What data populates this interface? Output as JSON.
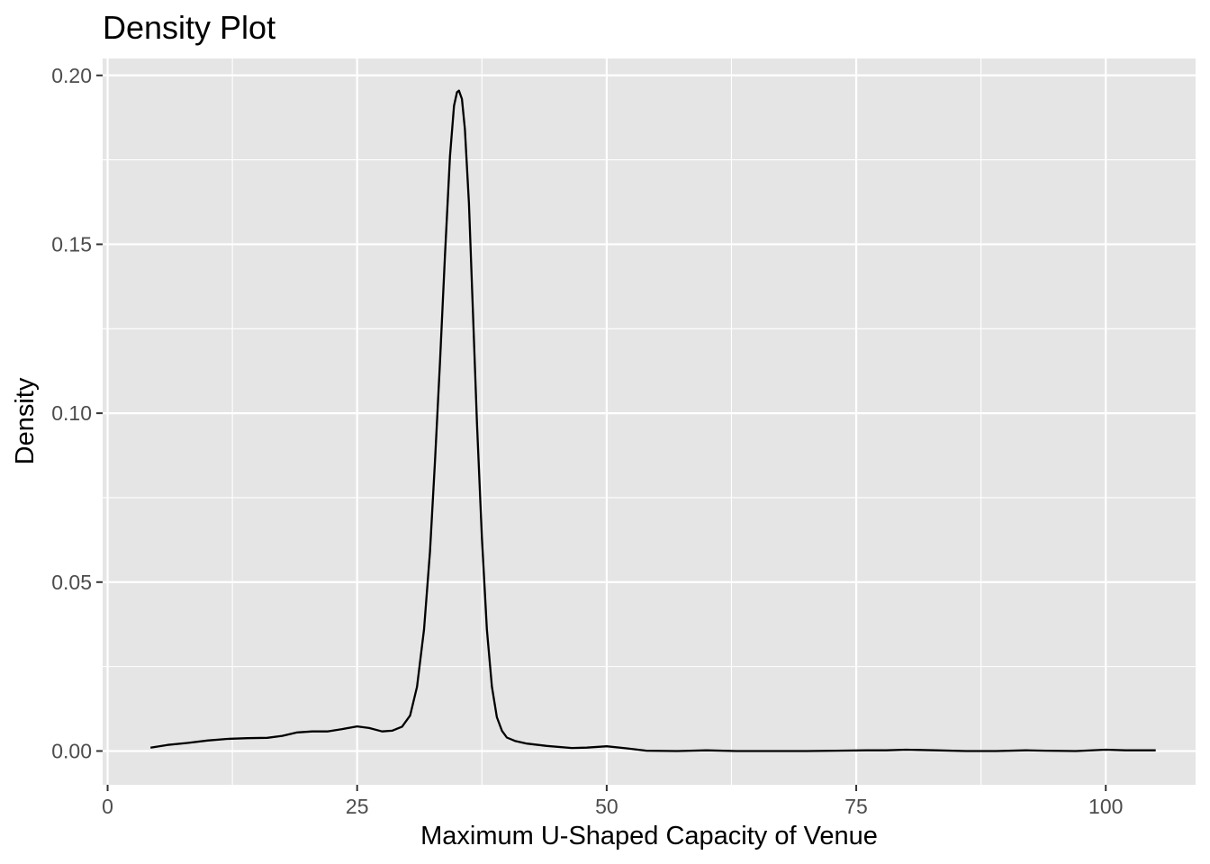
{
  "chart_data": {
    "type": "line",
    "title": "Density Plot",
    "xlabel": "Maximum U-Shaped Capacity of Venue",
    "ylabel": "Density",
    "xlim": [
      -0.5,
      109
    ],
    "ylim": [
      -0.01,
      0.205
    ],
    "x_ticks": [
      0,
      25,
      50,
      75,
      100
    ],
    "x_tick_labels": [
      "0",
      "25",
      "50",
      "75",
      "100"
    ],
    "y_ticks": [
      0.0,
      0.05,
      0.1,
      0.15,
      0.2
    ],
    "y_tick_labels": [
      "0.00",
      "0.05",
      "0.10",
      "0.15",
      "0.20"
    ],
    "grid": true,
    "legend": "none",
    "colors": {
      "panel": "#e5e5e5",
      "grid": "#ffffff",
      "line": "#000000",
      "tick_text": "#4d4d4d"
    },
    "series": [
      {
        "x": [
          4.3,
          6,
          8,
          10,
          12,
          14,
          16,
          17.5,
          19,
          20.5,
          22,
          23.5,
          25,
          26.2,
          27.5,
          28.5,
          29.5,
          30.3,
          31,
          31.7,
          32.3,
          32.8,
          33.3,
          33.8,
          34.3,
          34.7,
          35,
          35.2,
          35.5,
          35.8,
          36.2,
          36.6,
          37,
          37.5,
          38,
          38.5,
          39,
          39.5,
          40,
          40.8,
          42,
          44,
          46.5,
          48,
          50,
          52,
          54,
          57,
          60,
          63,
          66,
          70,
          73,
          76,
          78,
          80,
          83,
          86,
          89,
          92,
          94,
          97,
          100,
          102,
          105
        ],
        "y": [
          0.001,
          0.0018,
          0.0024,
          0.0031,
          0.0036,
          0.0038,
          0.0039,
          0.0045,
          0.0055,
          0.0058,
          0.0058,
          0.0065,
          0.0073,
          0.0068,
          0.0058,
          0.006,
          0.0072,
          0.0105,
          0.019,
          0.036,
          0.059,
          0.086,
          0.115,
          0.147,
          0.176,
          0.191,
          0.195,
          0.1955,
          0.193,
          0.184,
          0.162,
          0.13,
          0.097,
          0.063,
          0.036,
          0.019,
          0.01,
          0.006,
          0.004,
          0.003,
          0.0022,
          0.0015,
          0.0009,
          0.001,
          0.0014,
          0.0008,
          0.0001,
          0.0,
          0.0002,
          0.0,
          0.0,
          0.0,
          0.0001,
          0.0002,
          0.0002,
          0.0004,
          0.0002,
          0.0,
          0.0,
          0.0002,
          0.0001,
          0.0,
          0.0004,
          0.0002,
          0.0002
        ]
      }
    ]
  }
}
